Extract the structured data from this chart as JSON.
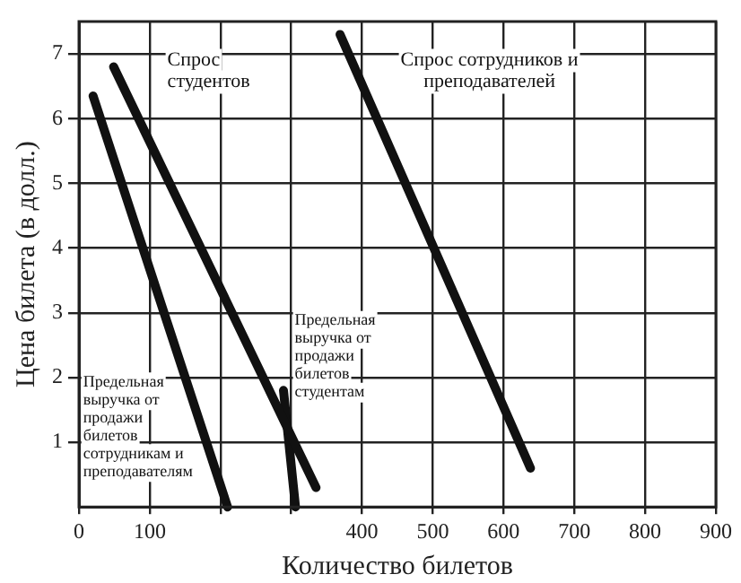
{
  "chart_data": {
    "type": "line",
    "xlabel": "Количество билетов",
    "ylabel": "Цена билета (в долл.)",
    "xlim": [
      0,
      900
    ],
    "xticks": [
      0,
      100,
      {
        "value": 200,
        "label": null
      },
      {
        "value": 300,
        "label": null
      },
      400,
      500,
      600,
      700,
      800,
      900
    ],
    "ylim": [
      0,
      7.5
    ],
    "yticks": [
      1,
      2,
      3,
      4,
      5,
      6,
      7
    ],
    "grid": true,
    "legend": false,
    "marker": "none",
    "line_style": "solid",
    "series": [
      {
        "name": "Спрос студентов",
        "color": "#111111",
        "x": [
          49,
          335
        ],
        "values": [
          6.8,
          0.3
        ]
      },
      {
        "name": "Спрос сотрудников и преподавателей",
        "color": "#111111",
        "x": [
          369,
          638
        ],
        "values": [
          7.3,
          0.6
        ]
      },
      {
        "name": "Предельная выручка от продажи билетов сотрудникам и преподавателям",
        "color": "#111111",
        "x": [
          20,
          210
        ],
        "values": [
          6.35,
          0
        ]
      },
      {
        "name": "Предельная выручка от продажи билетов студентам",
        "color": "#111111",
        "x": [
          289,
          306
        ],
        "values": [
          1.8,
          0
        ]
      }
    ]
  }
}
